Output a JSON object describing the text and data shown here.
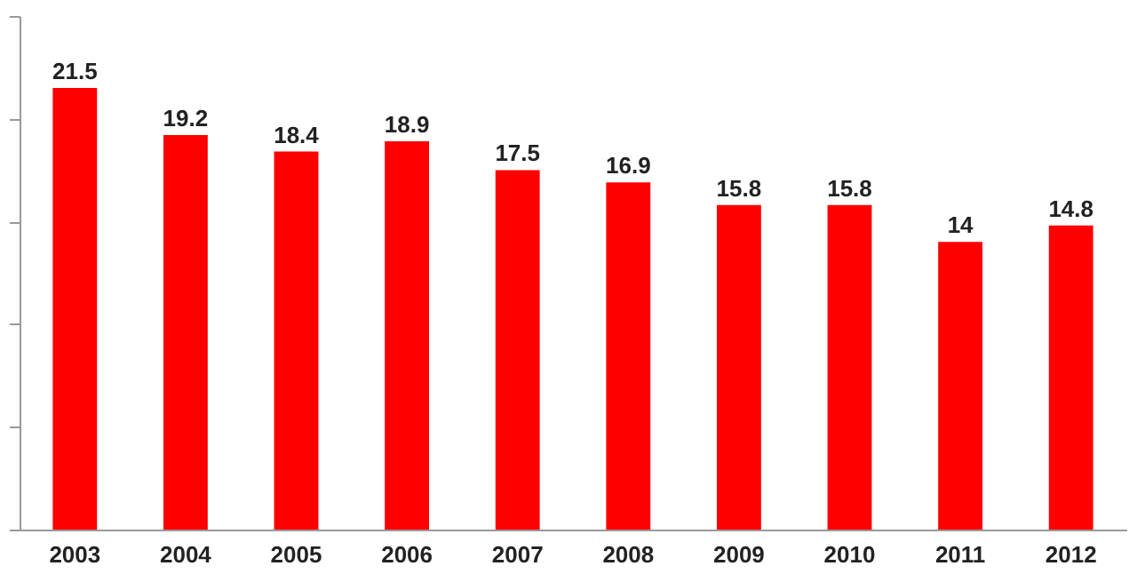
{
  "chart_data": {
    "type": "bar",
    "categories": [
      "2003",
      "2004",
      "2005",
      "2006",
      "2007",
      "2008",
      "2009",
      "2010",
      "2011",
      "2012"
    ],
    "values": [
      21.5,
      19.2,
      18.4,
      18.9,
      17.5,
      16.9,
      15.8,
      15.8,
      14,
      14.8
    ],
    "color": "#ff0000",
    "data_labels": true,
    "ylim": [
      0,
      25
    ],
    "yticks": [
      {
        "value": 0,
        "label": null
      },
      {
        "value": 5,
        "label": null
      },
      {
        "value": 10,
        "label": null
      },
      {
        "value": 15,
        "label": null
      },
      {
        "value": 20,
        "label": null
      },
      {
        "value": 25,
        "label": null
      }
    ],
    "tick_labels": "x",
    "grid": false
  }
}
